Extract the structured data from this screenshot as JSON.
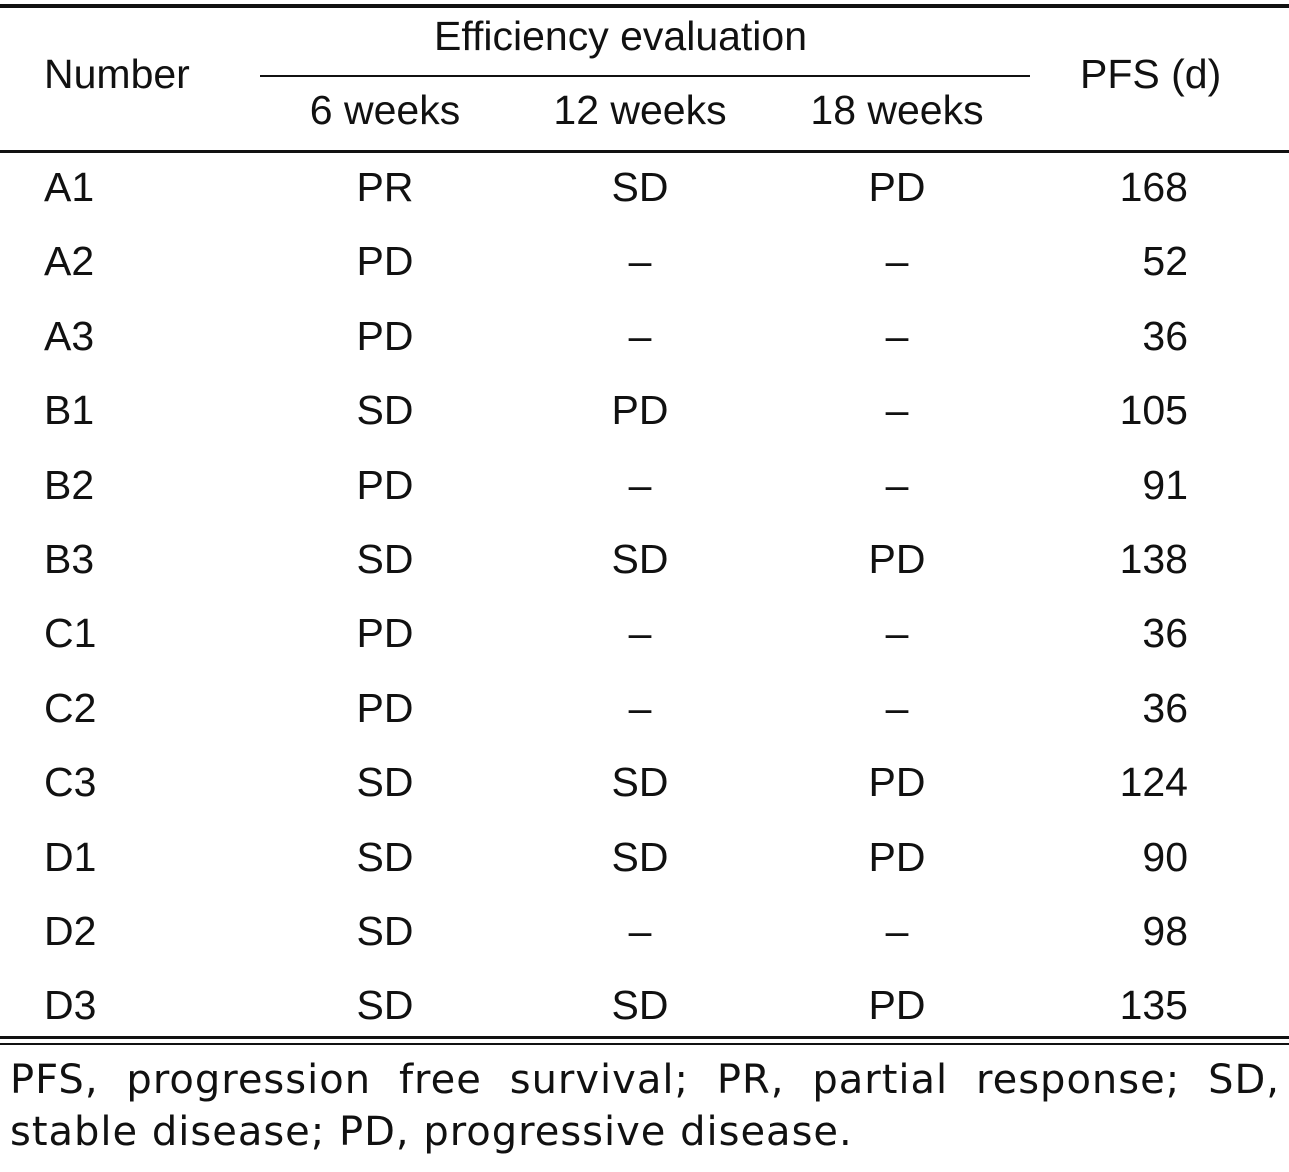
{
  "table": {
    "headers": {
      "number": "Number",
      "efficiency_group": "Efficiency evaluation",
      "week6": "6 weeks",
      "week12": "12 weeks",
      "week18": "18 weeks",
      "pfs": "PFS (d)"
    },
    "rows": [
      {
        "number": "A1",
        "w6": "PR",
        "w12": "SD",
        "w18": "PD",
        "pfs": "168"
      },
      {
        "number": "A2",
        "w6": "PD",
        "w12": "–",
        "w18": "–",
        "pfs": "52"
      },
      {
        "number": "A3",
        "w6": "PD",
        "w12": "–",
        "w18": "–",
        "pfs": "36"
      },
      {
        "number": "B1",
        "w6": "SD",
        "w12": "PD",
        "w18": "–",
        "pfs": "105"
      },
      {
        "number": "B2",
        "w6": "PD",
        "w12": "–",
        "w18": "–",
        "pfs": "91"
      },
      {
        "number": "B3",
        "w6": "SD",
        "w12": "SD",
        "w18": "PD",
        "pfs": "138"
      },
      {
        "number": "C1",
        "w6": "PD",
        "w12": "–",
        "w18": "–",
        "pfs": "36"
      },
      {
        "number": "C2",
        "w6": "PD",
        "w12": "–",
        "w18": "–",
        "pfs": "36"
      },
      {
        "number": "C3",
        "w6": "SD",
        "w12": "SD",
        "w18": "PD",
        "pfs": "124"
      },
      {
        "number": "D1",
        "w6": "SD",
        "w12": "SD",
        "w18": "PD",
        "pfs": "90"
      },
      {
        "number": "D2",
        "w6": "SD",
        "w12": "–",
        "w18": "–",
        "pfs": "98"
      },
      {
        "number": "D3",
        "w6": "SD",
        "w12": "SD",
        "w18": "PD",
        "pfs": "135"
      }
    ]
  },
  "footnote": "PFS, progression free survival; PR, partial response; SD, stable disease; PD, progressive disease."
}
